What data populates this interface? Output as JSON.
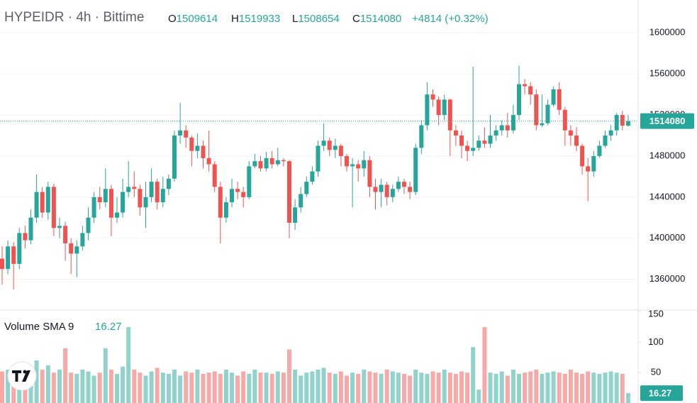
{
  "header": {
    "symbol": "HYPEIDR · 4h · Bittime",
    "ohlc": [
      {
        "label": "O",
        "value": "1509614"
      },
      {
        "label": "H",
        "value": "1519933"
      },
      {
        "label": "L",
        "value": "1508654"
      },
      {
        "label": "C",
        "value": "1514080"
      }
    ],
    "change": "+4814 (+0.32%)"
  },
  "chart_data": {
    "type": "candlestick",
    "up_color": "#26a69a",
    "down_color": "#ef5350",
    "grid": true,
    "ylim": [
      1330000,
      1632000
    ],
    "yticks": [
      1360000,
      1400000,
      1440000,
      1480000,
      1520000,
      1560000,
      1600000
    ],
    "open": [
      1380000,
      1370000,
      1392000,
      1375000,
      1405000,
      1398000,
      1420000,
      1445000,
      1425000,
      1450000,
      1410000,
      1412000,
      1395000,
      1385000,
      1392000,
      1405000,
      1420000,
      1440000,
      1435000,
      1448000,
      1420000,
      1425000,
      1445000,
      1450000,
      1448000,
      1430000,
      1440000,
      1455000,
      1435000,
      1448000,
      1458000,
      1500000,
      1505000,
      1498000,
      1485000,
      1490000,
      1478000,
      1472000,
      1450000,
      1420000,
      1435000,
      1448000,
      1445000,
      1440000,
      1470000,
      1475000,
      1468000,
      1478000,
      1472000,
      1476000,
      1475000,
      1415000,
      1430000,
      1443000,
      1455000,
      1465000,
      1490000,
      1495000,
      1486000,
      1490000,
      1480000,
      1470000,
      1472000,
      1468000,
      1476000,
      1450000,
      1445000,
      1452000,
      1440000,
      1448000,
      1455000,
      1450000,
      1445000,
      1488000,
      1510000,
      1540000,
      1535000,
      1520000,
      1535000,
      1505000,
      1500000,
      1490000,
      1485000,
      1488000,
      1495000,
      1492000,
      1500000,
      1505000,
      1510000,
      1505000,
      1520000,
      1550000,
      1548000,
      1540000,
      1510000,
      1512000,
      1530000,
      1545000,
      1525000,
      1505000,
      1500000,
      1490000,
      1470000,
      1465000,
      1480000,
      1490000,
      1500000,
      1505000,
      1520000,
      1509614
    ],
    "high": [
      1392000,
      1398000,
      1396000,
      1410000,
      1412000,
      1428000,
      1462000,
      1450000,
      1455000,
      1453000,
      1420000,
      1416000,
      1400000,
      1398000,
      1412000,
      1430000,
      1445000,
      1450000,
      1468000,
      1452000,
      1440000,
      1458000,
      1475000,
      1465000,
      1452000,
      1455000,
      1468000,
      1458000,
      1460000,
      1462000,
      1505000,
      1532000,
      1510000,
      1500000,
      1502000,
      1495000,
      1505000,
      1475000,
      1455000,
      1440000,
      1458000,
      1455000,
      1450000,
      1475000,
      1482000,
      1480000,
      1484000,
      1485000,
      1488000,
      1478000,
      1476000,
      1438000,
      1450000,
      1460000,
      1470000,
      1495000,
      1512000,
      1498000,
      1497000,
      1492000,
      1482000,
      1478000,
      1476000,
      1485000,
      1480000,
      1458000,
      1458000,
      1455000,
      1452000,
      1460000,
      1458000,
      1455000,
      1492000,
      1515000,
      1552000,
      1545000,
      1538000,
      1540000,
      1536000,
      1510000,
      1505000,
      1495000,
      1567000,
      1500000,
      1508000,
      1520000,
      1510000,
      1515000,
      1522000,
      1530000,
      1568000,
      1555000,
      1552000,
      1545000,
      1540000,
      1535000,
      1548000,
      1552000,
      1528000,
      1510000,
      1508000,
      1492000,
      1478000,
      1485000,
      1495000,
      1505000,
      1510000,
      1522000,
      1524000,
      1519933
    ],
    "low": [
      1355000,
      1365000,
      1350000,
      1370000,
      1390000,
      1394000,
      1415000,
      1420000,
      1418000,
      1402000,
      1400000,
      1378000,
      1365000,
      1362000,
      1388000,
      1398000,
      1415000,
      1428000,
      1430000,
      1402000,
      1415000,
      1420000,
      1440000,
      1440000,
      1422000,
      1410000,
      1435000,
      1428000,
      1430000,
      1442000,
      1455000,
      1492000,
      1488000,
      1470000,
      1478000,
      1468000,
      1465000,
      1445000,
      1395000,
      1415000,
      1430000,
      1438000,
      1430000,
      1438000,
      1468000,
      1465000,
      1465000,
      1468000,
      1470000,
      1470000,
      1400000,
      1408000,
      1425000,
      1440000,
      1452000,
      1460000,
      1485000,
      1480000,
      1478000,
      1470000,
      1465000,
      1430000,
      1455000,
      1460000,
      1440000,
      1428000,
      1430000,
      1432000,
      1435000,
      1445000,
      1443000,
      1438000,
      1442000,
      1482000,
      1505000,
      1528000,
      1510000,
      1515000,
      1480000,
      1490000,
      1478000,
      1475000,
      1480000,
      1485000,
      1488000,
      1488000,
      1495000,
      1500000,
      1498000,
      1502000,
      1515000,
      1540000,
      1530000,
      1505000,
      1508000,
      1510000,
      1528000,
      1520000,
      1490000,
      1490000,
      1485000,
      1462000,
      1436000,
      1460000,
      1478000,
      1488000,
      1495000,
      1500000,
      1505000,
      1508654
    ],
    "close": [
      1370000,
      1392000,
      1375000,
      1405000,
      1398000,
      1420000,
      1445000,
      1425000,
      1450000,
      1410000,
      1412000,
      1395000,
      1385000,
      1392000,
      1405000,
      1420000,
      1440000,
      1435000,
      1448000,
      1420000,
      1425000,
      1445000,
      1450000,
      1448000,
      1430000,
      1440000,
      1455000,
      1435000,
      1448000,
      1458000,
      1500000,
      1505000,
      1498000,
      1485000,
      1490000,
      1478000,
      1472000,
      1450000,
      1420000,
      1435000,
      1448000,
      1445000,
      1440000,
      1470000,
      1475000,
      1468000,
      1478000,
      1472000,
      1476000,
      1475000,
      1415000,
      1430000,
      1443000,
      1455000,
      1465000,
      1490000,
      1495000,
      1486000,
      1490000,
      1480000,
      1470000,
      1472000,
      1468000,
      1476000,
      1450000,
      1445000,
      1452000,
      1440000,
      1448000,
      1455000,
      1450000,
      1445000,
      1488000,
      1510000,
      1540000,
      1535000,
      1520000,
      1535000,
      1505000,
      1500000,
      1490000,
      1485000,
      1488000,
      1495000,
      1492000,
      1500000,
      1505000,
      1510000,
      1505000,
      1520000,
      1550000,
      1548000,
      1540000,
      1510000,
      1512000,
      1530000,
      1545000,
      1525000,
      1505000,
      1500000,
      1490000,
      1470000,
      1465000,
      1480000,
      1490000,
      1500000,
      1505000,
      1520000,
      1509614,
      1514080
    ],
    "volume": {
      "title": "Volume SMA 9",
      "ylim": [
        0,
        153
      ],
      "yticks": [
        50,
        100,
        150
      ],
      "values": [
        52,
        55,
        48,
        50,
        60,
        58,
        70,
        55,
        62,
        50,
        55,
        90,
        50,
        48,
        55,
        52,
        45,
        50,
        90,
        55,
        48,
        60,
        125,
        55,
        50,
        45,
        52,
        58,
        50,
        48,
        55,
        45,
        52,
        50,
        55,
        48,
        50,
        52,
        48,
        55,
        50,
        45,
        52,
        48,
        55,
        50,
        50,
        48,
        52,
        50,
        88,
        55,
        45,
        50,
        52,
        55,
        58,
        50,
        48,
        52,
        45,
        50,
        48,
        55,
        52,
        50,
        48,
        55,
        52,
        50,
        48,
        45,
        55,
        50,
        48,
        52,
        50,
        55,
        50,
        48,
        52,
        50,
        92,
        22,
        125,
        50,
        48,
        52,
        45,
        55,
        48,
        50,
        52,
        55,
        48,
        50,
        52,
        50,
        48,
        55,
        50,
        48,
        52,
        50,
        48,
        50,
        52,
        50,
        48,
        16.27
      ]
    }
  }
}
